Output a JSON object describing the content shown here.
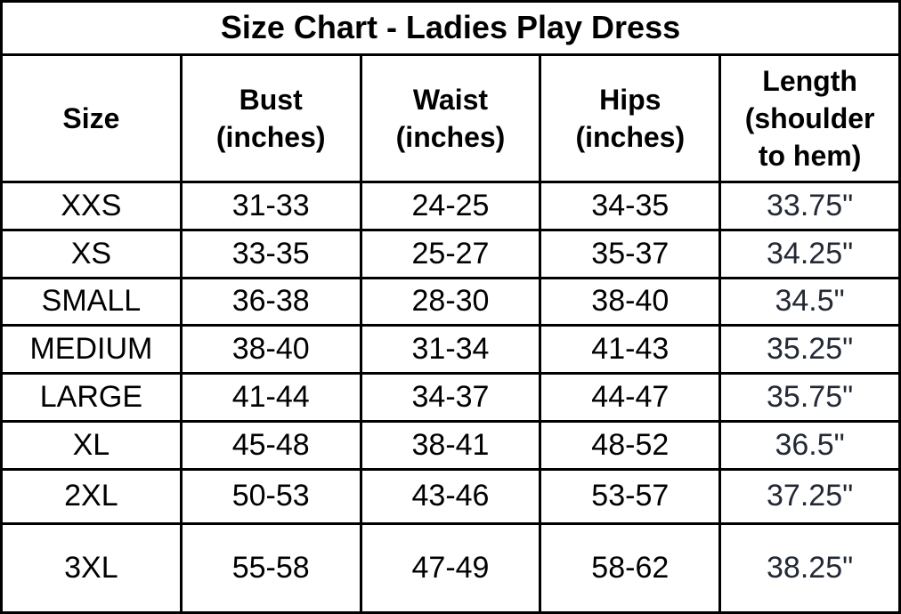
{
  "title": "Size Chart - Ladies Play Dress",
  "headers": [
    "Size",
    "Bust\n(inches)",
    "Waist\n(inches)",
    "Hips\n(inches)",
    "Length\n(shoulder\nto hem)"
  ],
  "rows": [
    [
      "XXS",
      "31-33",
      "24-25",
      "34-35",
      "33.75\""
    ],
    [
      "XS",
      "33-35",
      "25-27",
      "35-37",
      "34.25\""
    ],
    [
      "SMALL",
      "36-38",
      "28-30",
      "38-40",
      "34.5\""
    ],
    [
      "MEDIUM",
      "38-40",
      "31-34",
      "41-43",
      "35.25\""
    ],
    [
      "LARGE",
      "41-44",
      "34-37",
      "44-47",
      "35.75\""
    ],
    [
      "XL",
      "45-48",
      "38-41",
      "48-52",
      "36.5\""
    ],
    [
      "2XL",
      "50-53",
      "43-46",
      "53-57",
      "37.25\""
    ],
    [
      "3XL",
      "55-58",
      "47-49",
      "58-62",
      "38.25\""
    ]
  ],
  "colors": {
    "length_text": "#232a36",
    "border": "#000000"
  }
}
